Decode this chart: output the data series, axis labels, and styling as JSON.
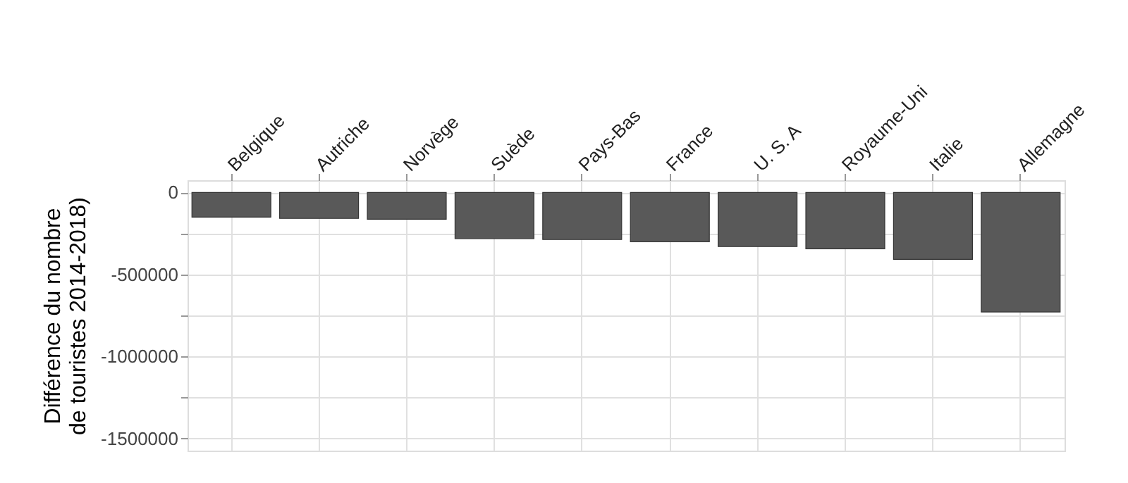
{
  "chart_data": {
    "type": "bar",
    "ylabel": "Différence du nombre\nde touristes 2014-2018)",
    "categories": [
      "Belgique",
      "Autriche",
      "Norvège",
      "Suède",
      "Pays-Bas",
      "France",
      "U. S. A",
      "Royaume-Uni",
      "Italie",
      "Allemagne"
    ],
    "values": [
      -150000,
      -158000,
      -163000,
      -281000,
      -287000,
      -301000,
      -330000,
      -343000,
      -408000,
      -729000
    ],
    "color": "#595959",
    "ylim": [
      -1575000,
      75000
    ],
    "yticks": [
      -1500000,
      {
        "value": -1250000,
        "label": null
      },
      -1000000,
      {
        "value": -750000,
        "label": null
      },
      -500000,
      {
        "value": -250000,
        "label": null
      },
      0
    ],
    "grid": true
  }
}
